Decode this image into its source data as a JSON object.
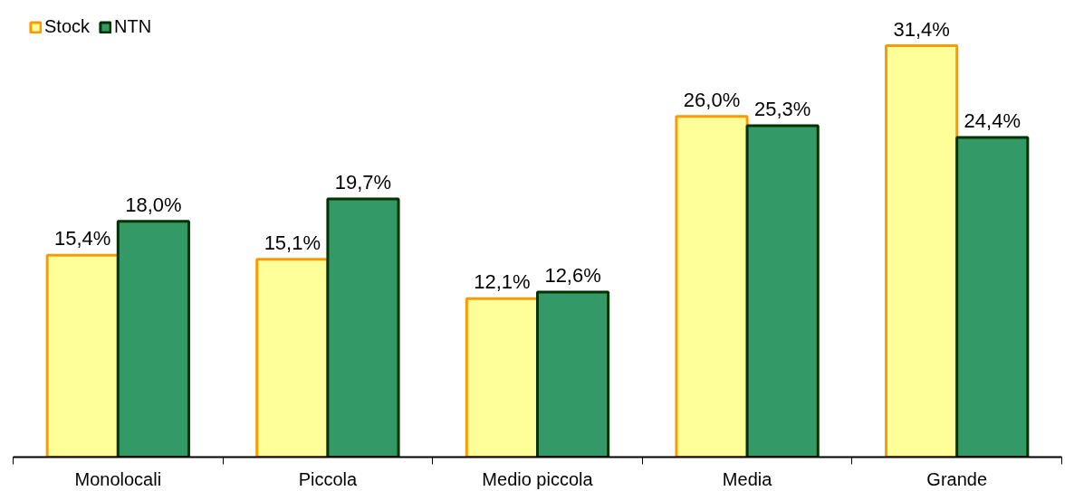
{
  "chart_data": {
    "type": "bar",
    "categories": [
      "Monolocali",
      "Piccola",
      "Medio piccola",
      "Media",
      "Grande"
    ],
    "series": [
      {
        "name": "Stock",
        "color": "#ffff99",
        "values": [
          15.4,
          15.1,
          12.1,
          26.0,
          31.4
        ],
        "value_labels": [
          "15,4%",
          "15,1%",
          "12,1%",
          "26,0%",
          "31,4%"
        ]
      },
      {
        "name": "NTN",
        "color": "#339966",
        "values": [
          18.0,
          19.7,
          12.6,
          25.3,
          24.4
        ],
        "value_labels": [
          "18,0%",
          "19,7%",
          "12,6%",
          "25,3%",
          "24,4%"
        ]
      }
    ],
    "tick_labels": "x",
    "legend": "top left",
    "grid": false
  }
}
